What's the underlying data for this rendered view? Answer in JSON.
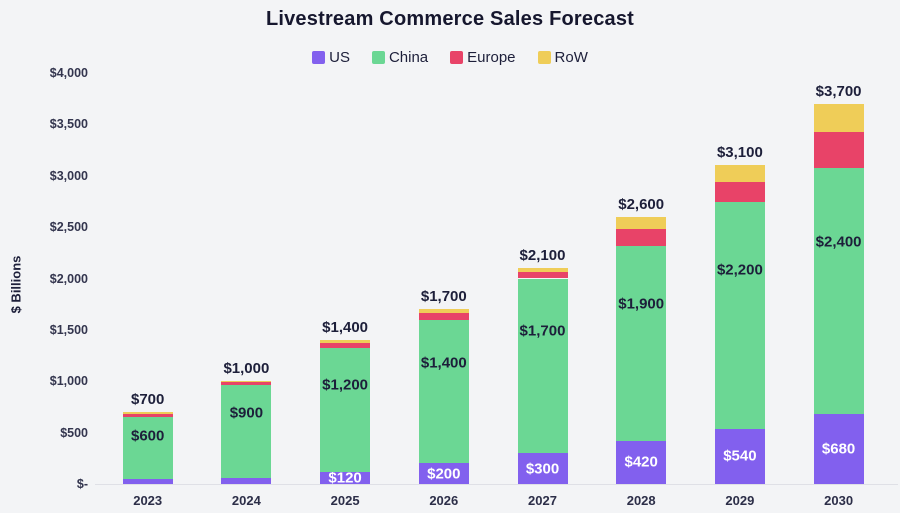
{
  "theme": {
    "background": "#F3F4F6",
    "text_dark": "#1D1F3A",
    "axis_text": "#33354E",
    "baseline": "#DFE0E6",
    "inside_label_light": "#FFFFFF"
  },
  "chart_data": {
    "type": "bar",
    "stacked": true,
    "title": "Livestream Commerce Sales Forecast",
    "xlabel": "",
    "ylabel": "$ Billions",
    "categories": [
      "2023",
      "2024",
      "2025",
      "2026",
      "2027",
      "2028",
      "2029",
      "2030"
    ],
    "series": [
      {
        "name": "US",
        "color": "#8260EE",
        "values": [
          50,
          60,
          120,
          200,
          300,
          420,
          540,
          680
        ],
        "segment_labels": [
          "",
          "",
          "$120",
          "$200",
          "$300",
          "$420",
          "$540",
          "$680"
        ],
        "label_color": "#FFFFFF"
      },
      {
        "name": "China",
        "color": "#6BD794",
        "values": [
          600,
          900,
          1200,
          1400,
          1700,
          1900,
          2200,
          2400
        ],
        "segment_labels": [
          "$600",
          "$900",
          "$1,200",
          "$1,400",
          "$1,700",
          "$1,900",
          "$2,200",
          "$2,400"
        ],
        "label_color": "#1D1F3A"
      },
      {
        "name": "Europe",
        "color": "#E84368",
        "values": [
          30,
          30,
          50,
          60,
          60,
          160,
          200,
          350
        ],
        "segment_labels": [
          "",
          "",
          "",
          "",
          "",
          "",
          "",
          ""
        ],
        "label_color": "#1D1F3A"
      },
      {
        "name": "RoW",
        "color": "#EFCD58",
        "values": [
          20,
          10,
          30,
          40,
          40,
          120,
          160,
          270
        ],
        "segment_labels": [
          "",
          "",
          "",
          "",
          "",
          "",
          "",
          ""
        ],
        "label_color": "#1D1F3A"
      }
    ],
    "totals_labels": [
      "$700",
      "$1,000",
      "$1,400",
      "$1,700",
      "$2,100",
      "$2,600",
      "$3,100",
      "$3,700"
    ],
    "totals_values": [
      700,
      1000,
      1400,
      1700,
      2100,
      2600,
      3100,
      3700
    ],
    "y_ticks": [
      {
        "label": "$4,000",
        "value": 4000
      },
      {
        "label": "$3,500",
        "value": 3500
      },
      {
        "label": "$3,000",
        "value": 3000
      },
      {
        "label": "$2,500",
        "value": 2500
      },
      {
        "label": "$2,000",
        "value": 2000
      },
      {
        "label": "$1,500",
        "value": 1500
      },
      {
        "label": "$1,000",
        "value": 1000
      },
      {
        "label": "$500",
        "value": 500
      },
      {
        "label": "$-",
        "value": 0
      }
    ],
    "ylim": [
      0,
      4000
    ],
    "grid": false,
    "legend_position": "top"
  }
}
